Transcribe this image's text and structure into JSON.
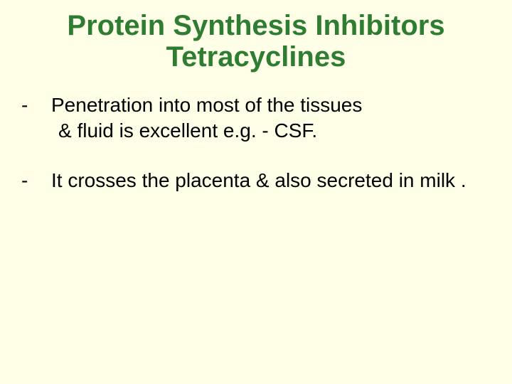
{
  "slide": {
    "background_color": "#ffffe8",
    "title": {
      "line1": "Protein Synthesis Inhibitors",
      "line2": "Tetracyclines",
      "color": "#2e7d32",
      "font_weight": "bold",
      "font_size": 40,
      "align": "center"
    },
    "body": {
      "text_color": "#000000",
      "font_size": 28,
      "bullets": [
        {
          "marker": "-",
          "line1": "Penetration into most of the tissues",
          "line2": " & fluid is excellent e.g. - CSF."
        },
        {
          "marker": "-",
          "text": "It crosses the placenta & also secreted in milk ."
        }
      ]
    }
  }
}
